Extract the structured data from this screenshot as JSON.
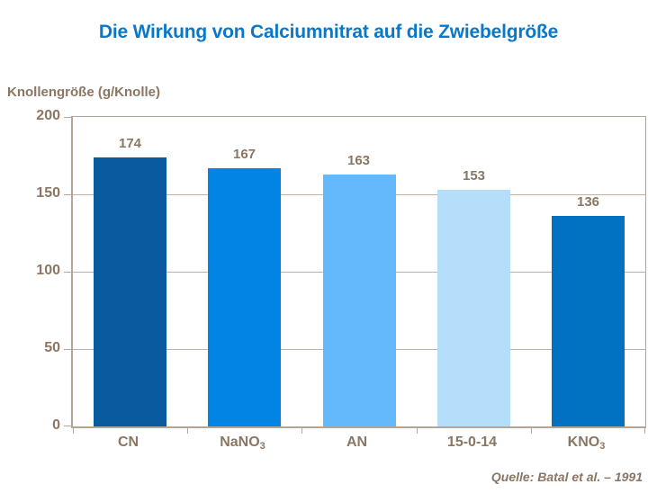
{
  "title": "Die Wirkung von Calciumnitrat auf die Zwiebelgröße",
  "y_axis_title": "Knollengröße (g/Knolle)",
  "source": "Quelle: Batal et al. – 1991",
  "colors": {
    "title_blue": "#0a78c8",
    "text_brown": "#8a7663",
    "frame_taupe": "#b3a696",
    "gridline_taupe": "#beb2a4"
  },
  "chart_data": {
    "type": "bar",
    "title": "Die Wirkung von Calciumnitrat auf die Zwiebelgröße",
    "xlabel": "",
    "ylabel": "Knollengröße (g/Knolle)",
    "categories": [
      "CN",
      "NaNO₃",
      "AN",
      "15-0-14",
      "KNO₃"
    ],
    "categories_rich": [
      {
        "text": "CN",
        "sub": ""
      },
      {
        "text": "NaNO",
        "sub": "3"
      },
      {
        "text": "AN",
        "sub": ""
      },
      {
        "text": "15-0-14",
        "sub": ""
      },
      {
        "text": "KNO",
        "sub": "3"
      }
    ],
    "values": [
      174,
      167,
      163,
      153,
      136
    ],
    "bar_colors": [
      "#0a5aa0",
      "#0284e4",
      "#63b9fb",
      "#b5defb",
      "#0171c1"
    ],
    "ylim": [
      0,
      200
    ],
    "yticks": [
      0,
      50,
      100,
      150,
      200
    ],
    "gridlines": [
      50,
      100,
      150
    ],
    "grid": true,
    "legend": false,
    "source": "Quelle: Batal et al. – 1991"
  }
}
